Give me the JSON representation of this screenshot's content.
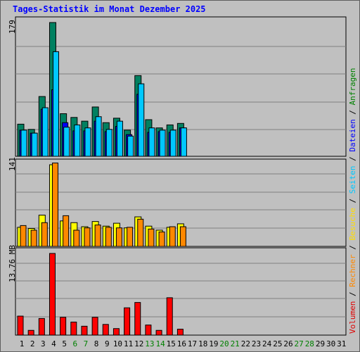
{
  "title": "Tages-Statistik im Monat Dezember 2025",
  "panel_max_labels": {
    "requests": "179",
    "visits": "141",
    "volume": "13.76 MB"
  },
  "legend": [
    {
      "label": "Volumen",
      "color": "#e00000"
    },
    {
      "label": "Rechner",
      "color": "#ff8800"
    },
    {
      "label": "Besuche",
      "color": "#ffdd00"
    },
    {
      "label": "Seiten",
      "color": "#00c8ff"
    },
    {
      "label": "Dateien",
      "color": "#0000ff"
    },
    {
      "label": "Anfragen",
      "color": "#008000"
    }
  ],
  "days": [
    "1",
    "2",
    "3",
    "4",
    "5",
    "6",
    "7",
    "8",
    "9",
    "10",
    "11",
    "12",
    "13",
    "14",
    "15",
    "16",
    "17",
    "18",
    "19",
    "20",
    "21",
    "22",
    "23",
    "24",
    "25",
    "26",
    "27",
    "28",
    "29",
    "30",
    "31"
  ],
  "weekend_days": [
    "6",
    "7",
    "13",
    "14",
    "20",
    "21",
    "27",
    "28"
  ],
  "colors": {
    "anfragen": "#008060",
    "dateien": "#0000ff",
    "seiten": "#00c8ff",
    "besuche": "#ffff00",
    "rechner": "#ff8800",
    "volumen": "#ff0000",
    "weekday_label": "#000000",
    "weekend_label": "#008000"
  },
  "chart_data": [
    {
      "type": "bar",
      "categories": [
        "1",
        "2",
        "3",
        "4",
        "5",
        "6",
        "7",
        "8",
        "9",
        "10",
        "11",
        "12",
        "13",
        "14",
        "15",
        "16"
      ],
      "ylim": [
        0,
        179
      ],
      "series": [
        {
          "name": "Anfragen",
          "values": [
            43,
            36,
            80,
            179,
            57,
            52,
            47,
            66,
            45,
            51,
            35,
            108,
            49,
            38,
            42,
            44
          ]
        },
        {
          "name": "Dateien",
          "values": [
            35,
            31,
            63,
            89,
            45,
            34,
            34,
            47,
            33,
            40,
            29,
            83,
            32,
            33,
            32,
            38
          ]
        },
        {
          "name": "Seiten",
          "values": [
            35,
            31,
            65,
            140,
            39,
            42,
            38,
            53,
            36,
            47,
            27,
            97,
            38,
            35,
            35,
            38
          ]
        }
      ]
    },
    {
      "type": "bar",
      "categories": [
        "1",
        "2",
        "3",
        "4",
        "5",
        "6",
        "7",
        "8",
        "9",
        "10",
        "11",
        "12",
        "13",
        "14",
        "15",
        "16"
      ],
      "ylim": [
        0,
        141
      ],
      "series": [
        {
          "name": "Besuche",
          "values": [
            33,
            31,
            54,
            141,
            44,
            41,
            34,
            43,
            35,
            40,
            32,
            51,
            35,
            28,
            33,
            39
          ]
        },
        {
          "name": "Rechner",
          "values": [
            36,
            28,
            41,
            144,
            53,
            28,
            32,
            37,
            33,
            32,
            33,
            47,
            30,
            25,
            34,
            34
          ]
        }
      ]
    },
    {
      "type": "bar",
      "categories": [
        "1",
        "2",
        "3",
        "4",
        "5",
        "6",
        "7",
        "8",
        "9",
        "10",
        "11",
        "12",
        "13",
        "14",
        "15",
        "16"
      ],
      "ylim": [
        0,
        13.76
      ],
      "series": [
        {
          "name": "Volumen",
          "values": [
            3.2,
            0.8,
            2.8,
            13.76,
            3.0,
            2.2,
            1.5,
            3.0,
            1.8,
            1.1,
            4.6,
            5.5,
            1.7,
            0.8,
            6.3,
            1.0
          ]
        }
      ]
    }
  ]
}
